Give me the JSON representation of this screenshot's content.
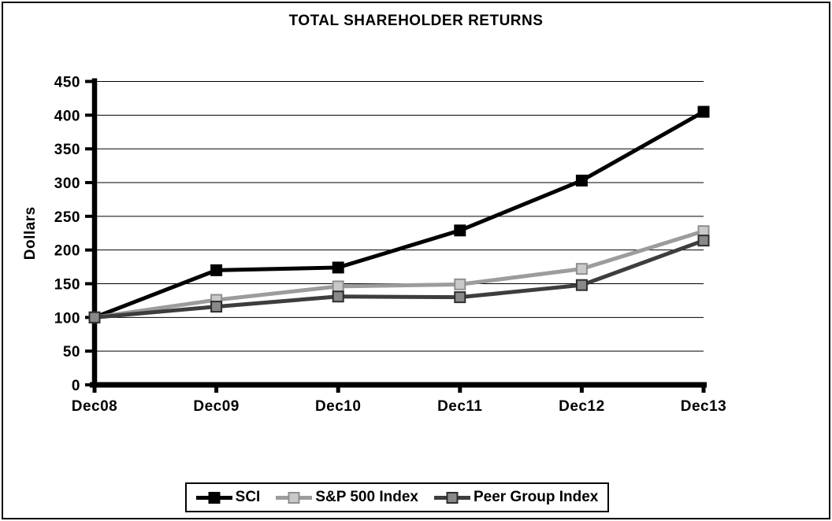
{
  "chart_data": {
    "type": "line",
    "title": "TOTAL SHAREHOLDER RETURNS",
    "xlabel": "",
    "ylabel": "Dollars",
    "categories": [
      "Dec08",
      "Dec09",
      "Dec10",
      "Dec11",
      "Dec12",
      "Dec13"
    ],
    "series": [
      {
        "name": "SCI",
        "values": [
          100,
          170,
          174,
          229,
          303,
          405
        ],
        "line_color": "#000000",
        "marker_fill": "#000000",
        "marker_border": "#000000"
      },
      {
        "name": "S&P 500 Index",
        "values": [
          100,
          126,
          146,
          149,
          172,
          228
        ],
        "line_color": "#9c9c9c",
        "marker_fill": "#c9c9c9",
        "marker_border": "#8f8f8f"
      },
      {
        "name": "Peer Group Index",
        "values": [
          100,
          116,
          131,
          130,
          148,
          214
        ],
        "line_color": "#3d3d3d",
        "marker_fill": "#898989",
        "marker_border": "#2e2e2e"
      }
    ],
    "ylim": [
      0,
      450
    ],
    "yticks": [
      0,
      50,
      100,
      150,
      200,
      250,
      300,
      350,
      400,
      450
    ],
    "grid": true,
    "gridline_color": "#000000",
    "axis_color": "#000000",
    "legend_position": "bottom",
    "marker_shape": "square"
  }
}
